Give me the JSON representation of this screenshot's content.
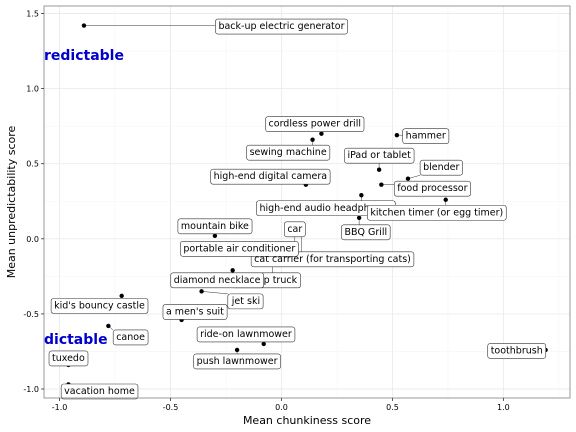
{
  "chart_data": {
    "type": "scatter",
    "xlabel": "Mean chunkiness score",
    "ylabel": "Mean unpredictability score",
    "xlim": [
      -1.07,
      1.3
    ],
    "ylim": [
      -1.06,
      1.55
    ],
    "xticks": [
      -1.0,
      -0.5,
      0.0,
      0.5,
      1.0
    ],
    "xtick_labels": [
      "-1.0",
      "-0.5",
      "0.0",
      "0.5",
      "1.0"
    ],
    "yticks": [
      -1.0,
      -0.5,
      0.0,
      0.5,
      1.0,
      1.5
    ],
    "ytick_labels": [
      "-1.0",
      "-0.5",
      "0.0",
      "0.5",
      "1.0",
      "1.5"
    ],
    "grid": true,
    "annotations": [
      {
        "text": "redictable",
        "x": -1.07,
        "y": 1.19,
        "color": "#0000cc"
      },
      {
        "text": "dictable",
        "x": -1.07,
        "y": -0.7,
        "color": "#0000cc"
      }
    ],
    "points": [
      {
        "label": "back-up electric generator",
        "x": -0.89,
        "y": 1.42,
        "lx": 0.0,
        "ly": 1.42
      },
      {
        "label": "cordless power drill",
        "x": 0.18,
        "y": 0.7,
        "lx": 0.15,
        "ly": 0.77
      },
      {
        "label": "hammer",
        "x": 0.52,
        "y": 0.69,
        "lx": 0.65,
        "ly": 0.69
      },
      {
        "label": "sewing machine",
        "x": 0.14,
        "y": 0.66,
        "lx": 0.03,
        "ly": 0.58
      },
      {
        "label": "iPad or tablet",
        "x": 0.44,
        "y": 0.46,
        "lx": 0.44,
        "ly": 0.56
      },
      {
        "label": "blender",
        "x": 0.57,
        "y": 0.4,
        "lx": 0.72,
        "ly": 0.48
      },
      {
        "label": "high-end digital camera",
        "x": 0.11,
        "y": 0.36,
        "lx": -0.05,
        "ly": 0.42
      },
      {
        "label": "food processor",
        "x": 0.45,
        "y": 0.36,
        "lx": 0.68,
        "ly": 0.34
      },
      {
        "label": "high-end audio headphones",
        "x": 0.36,
        "y": 0.29,
        "lx": 0.2,
        "ly": 0.21
      },
      {
        "label": "kitchen timer (or egg timer)",
        "x": 0.74,
        "y": 0.26,
        "lx": 0.7,
        "ly": 0.18
      },
      {
        "label": "BBQ Grill",
        "x": 0.35,
        "y": 0.14,
        "lx": 0.38,
        "ly": 0.05
      },
      {
        "label": "car",
        "x": 0.06,
        "y": -0.06,
        "lx": 0.06,
        "ly": 0.07
      },
      {
        "label": "cat carrier (for transporting cats)",
        "x": 0.09,
        "y": 0.03,
        "lx": 0.23,
        "ly": -0.13
      },
      {
        "label": "mountain bike",
        "x": -0.3,
        "y": 0.02,
        "lx": -0.3,
        "ly": 0.09
      },
      {
        "label": "portable air conditioner",
        "x": -0.04,
        "y": -0.13,
        "lx": -0.19,
        "ly": -0.06
      },
      {
        "label": "pick-up truck",
        "x": -0.04,
        "y": -0.16,
        "lx": -0.07,
        "ly": -0.27
      },
      {
        "label": "diamond necklace",
        "x": -0.22,
        "y": -0.21,
        "lx": -0.29,
        "ly": -0.27
      },
      {
        "label": "kid's bouncy castle",
        "x": -0.72,
        "y": -0.38,
        "lx": -0.82,
        "ly": -0.44
      },
      {
        "label": "jet ski",
        "x": -0.36,
        "y": -0.35,
        "lx": -0.16,
        "ly": -0.41
      },
      {
        "label": "a men's suit",
        "x": -0.45,
        "y": -0.54,
        "lx": -0.39,
        "ly": -0.48
      },
      {
        "label": "canoe",
        "x": -0.78,
        "y": -0.58,
        "lx": -0.68,
        "ly": -0.65
      },
      {
        "label": "ride-on lawnmower",
        "x": -0.08,
        "y": -0.7,
        "lx": -0.16,
        "ly": -0.63
      },
      {
        "label": "push lawnmower",
        "x": -0.2,
        "y": -0.74,
        "lx": -0.2,
        "ly": -0.81
      },
      {
        "label": "toothbrush",
        "x": 1.19,
        "y": -0.74,
        "lx": 1.06,
        "ly": -0.74
      },
      {
        "label": "tuxedo",
        "x": -0.96,
        "y": -0.84,
        "lx": -0.96,
        "ly": -0.79
      },
      {
        "label": "vacation home",
        "x": -0.96,
        "y": -0.97,
        "lx": -0.82,
        "ly": -1.01
      }
    ]
  }
}
